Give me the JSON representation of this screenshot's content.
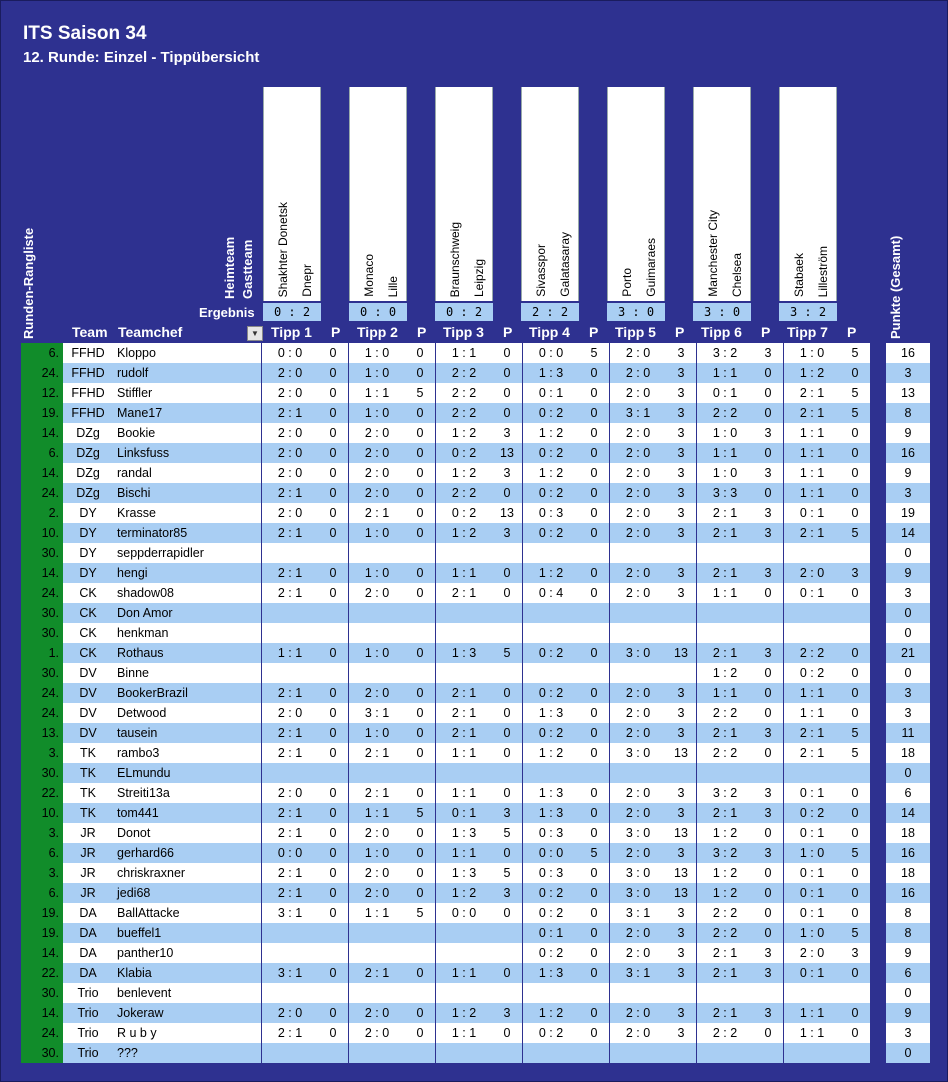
{
  "title": "ITS Saison 34",
  "subtitle": "12. Runde: Einzel - Tippübersicht",
  "labels": {
    "heimteam": "Heimteam",
    "gastteam": "Gastteam",
    "ergebnis": "Ergebnis",
    "runden_rangliste": "Runden-Rangliste",
    "team": "Team",
    "teamchef": "Teamchef",
    "punkte_gesamt": "Punkte (Gesamt)",
    "p": "P"
  },
  "matches": [
    {
      "home": "Shakhter Donetsk",
      "away": "Dnepr",
      "result": "0 : 2",
      "tipp_label": "Tipp 1"
    },
    {
      "home": "Monaco",
      "away": "Lille",
      "result": "0 : 0",
      "tipp_label": "Tipp 2"
    },
    {
      "home": "Braunschweig",
      "away": "Leipzig",
      "result": "0 : 2",
      "tipp_label": "Tipp 3"
    },
    {
      "home": "Sivasspor",
      "away": "Galatasaray",
      "result": "2 : 2",
      "tipp_label": "Tipp 4"
    },
    {
      "home": "Porto",
      "away": "Guimaraes",
      "result": "3 : 0",
      "tipp_label": "Tipp 5"
    },
    {
      "home": "Manchester City",
      "away": "Chelsea",
      "result": "3 : 0",
      "tipp_label": "Tipp 6"
    },
    {
      "home": "Stabaek",
      "away": "Lilleström",
      "result": "3 : 2",
      "tipp_label": "Tipp 7"
    }
  ],
  "rows": [
    {
      "rank": "6.",
      "team": "FFHD",
      "chef": "Kloppo",
      "tips": [
        [
          "0 : 0",
          "0"
        ],
        [
          "1 : 0",
          "0"
        ],
        [
          "1 : 1",
          "0"
        ],
        [
          "0 : 0",
          "5"
        ],
        [
          "2 : 0",
          "3"
        ],
        [
          "3 : 2",
          "3"
        ],
        [
          "1 : 0",
          "5"
        ]
      ],
      "total": "16"
    },
    {
      "rank": "24.",
      "team": "FFHD",
      "chef": "rudolf",
      "tips": [
        [
          "2 : 0",
          "0"
        ],
        [
          "1 : 0",
          "0"
        ],
        [
          "2 : 2",
          "0"
        ],
        [
          "1 : 3",
          "0"
        ],
        [
          "2 : 0",
          "3"
        ],
        [
          "1 : 1",
          "0"
        ],
        [
          "1 : 2",
          "0"
        ]
      ],
      "total": "3"
    },
    {
      "rank": "12.",
      "team": "FFHD",
      "chef": "Stiffler",
      "tips": [
        [
          "2 : 0",
          "0"
        ],
        [
          "1 : 1",
          "5"
        ],
        [
          "2 : 2",
          "0"
        ],
        [
          "0 : 1",
          "0"
        ],
        [
          "2 : 0",
          "3"
        ],
        [
          "0 : 1",
          "0"
        ],
        [
          "2 : 1",
          "5"
        ]
      ],
      "total": "13"
    },
    {
      "rank": "19.",
      "team": "FFHD",
      "chef": "Mane17",
      "tips": [
        [
          "2 : 1",
          "0"
        ],
        [
          "1 : 0",
          "0"
        ],
        [
          "2 : 2",
          "0"
        ],
        [
          "0 : 2",
          "0"
        ],
        [
          "3 : 1",
          "3"
        ],
        [
          "2 : 2",
          "0"
        ],
        [
          "2 : 1",
          "5"
        ]
      ],
      "total": "8"
    },
    {
      "rank": "14.",
      "team": "DZg",
      "chef": "Bookie",
      "tips": [
        [
          "2 : 0",
          "0"
        ],
        [
          "2 : 0",
          "0"
        ],
        [
          "1 : 2",
          "3"
        ],
        [
          "1 : 2",
          "0"
        ],
        [
          "2 : 0",
          "3"
        ],
        [
          "1 : 0",
          "3"
        ],
        [
          "1 : 1",
          "0"
        ]
      ],
      "total": "9"
    },
    {
      "rank": "6.",
      "team": "DZg",
      "chef": "Linksfuss",
      "tips": [
        [
          "2 : 0",
          "0"
        ],
        [
          "2 : 0",
          "0"
        ],
        [
          "0 : 2",
          "13"
        ],
        [
          "0 : 2",
          "0"
        ],
        [
          "2 : 0",
          "3"
        ],
        [
          "1 : 1",
          "0"
        ],
        [
          "1 : 1",
          "0"
        ]
      ],
      "total": "16"
    },
    {
      "rank": "14.",
      "team": "DZg",
      "chef": "randal",
      "tips": [
        [
          "2 : 0",
          "0"
        ],
        [
          "2 : 0",
          "0"
        ],
        [
          "1 : 2",
          "3"
        ],
        [
          "1 : 2",
          "0"
        ],
        [
          "2 : 0",
          "3"
        ],
        [
          "1 : 0",
          "3"
        ],
        [
          "1 : 1",
          "0"
        ]
      ],
      "total": "9"
    },
    {
      "rank": "24.",
      "team": "DZg",
      "chef": "Bischi",
      "tips": [
        [
          "2 : 1",
          "0"
        ],
        [
          "2 : 0",
          "0"
        ],
        [
          "2 : 2",
          "0"
        ],
        [
          "0 : 2",
          "0"
        ],
        [
          "2 : 0",
          "3"
        ],
        [
          "3 : 3",
          "0"
        ],
        [
          "1 : 1",
          "0"
        ]
      ],
      "total": "3"
    },
    {
      "rank": "2.",
      "team": "DY",
      "chef": "Krasse",
      "tips": [
        [
          "2 : 0",
          "0"
        ],
        [
          "2 : 1",
          "0"
        ],
        [
          "0 : 2",
          "13"
        ],
        [
          "0 : 3",
          "0"
        ],
        [
          "2 : 0",
          "3"
        ],
        [
          "2 : 1",
          "3"
        ],
        [
          "0 : 1",
          "0"
        ]
      ],
      "total": "19"
    },
    {
      "rank": "10.",
      "team": "DY",
      "chef": "terminator85",
      "tips": [
        [
          "2 : 1",
          "0"
        ],
        [
          "1 : 0",
          "0"
        ],
        [
          "1 : 2",
          "3"
        ],
        [
          "0 : 2",
          "0"
        ],
        [
          "2 : 0",
          "3"
        ],
        [
          "2 : 1",
          "3"
        ],
        [
          "2 : 1",
          "5"
        ]
      ],
      "total": "14"
    },
    {
      "rank": "30.",
      "team": "DY",
      "chef": "seppderrapidler",
      "tips": [
        [
          "",
          ""
        ],
        [
          "",
          ""
        ],
        [
          "",
          ""
        ],
        [
          "",
          ""
        ],
        [
          "",
          ""
        ],
        [
          "",
          ""
        ],
        [
          "",
          ""
        ]
      ],
      "total": "0"
    },
    {
      "rank": "14.",
      "team": "DY",
      "chef": "hengi",
      "tips": [
        [
          "2 : 1",
          "0"
        ],
        [
          "1 : 0",
          "0"
        ],
        [
          "1 : 1",
          "0"
        ],
        [
          "1 : 2",
          "0"
        ],
        [
          "2 : 0",
          "3"
        ],
        [
          "2 : 1",
          "3"
        ],
        [
          "2 : 0",
          "3"
        ]
      ],
      "total": "9"
    },
    {
      "rank": "24.",
      "team": "CK",
      "chef": "shadow08",
      "tips": [
        [
          "2 : 1",
          "0"
        ],
        [
          "2 : 0",
          "0"
        ],
        [
          "2 : 1",
          "0"
        ],
        [
          "0 : 4",
          "0"
        ],
        [
          "2 : 0",
          "3"
        ],
        [
          "1 : 1",
          "0"
        ],
        [
          "0 : 1",
          "0"
        ]
      ],
      "total": "3"
    },
    {
      "rank": "30.",
      "team": "CK",
      "chef": "Don Amor",
      "tips": [
        [
          "",
          ""
        ],
        [
          "",
          ""
        ],
        [
          "",
          ""
        ],
        [
          "",
          ""
        ],
        [
          "",
          ""
        ],
        [
          "",
          ""
        ],
        [
          "",
          ""
        ]
      ],
      "total": "0"
    },
    {
      "rank": "30.",
      "team": "CK",
      "chef": "henkman",
      "tips": [
        [
          "",
          ""
        ],
        [
          "",
          ""
        ],
        [
          "",
          ""
        ],
        [
          "",
          ""
        ],
        [
          "",
          ""
        ],
        [
          "",
          ""
        ],
        [
          "",
          ""
        ]
      ],
      "total": "0"
    },
    {
      "rank": "1.",
      "team": "CK",
      "chef": "Rothaus",
      "tips": [
        [
          "1 : 1",
          "0"
        ],
        [
          "1 : 0",
          "0"
        ],
        [
          "1 : 3",
          "5"
        ],
        [
          "0 : 2",
          "0"
        ],
        [
          "3 : 0",
          "13"
        ],
        [
          "2 : 1",
          "3"
        ],
        [
          "2 : 2",
          "0"
        ]
      ],
      "total": "21"
    },
    {
      "rank": "30.",
      "team": "DV",
      "chef": "Binne",
      "tips": [
        [
          "",
          ""
        ],
        [
          "",
          ""
        ],
        [
          "",
          ""
        ],
        [
          "",
          ""
        ],
        [
          "",
          ""
        ],
        [
          "1 : 2",
          "0"
        ],
        [
          "0 : 2",
          "0"
        ]
      ],
      "total": "0"
    },
    {
      "rank": "24.",
      "team": "DV",
      "chef": "BookerBrazil",
      "tips": [
        [
          "2 : 1",
          "0"
        ],
        [
          "2 : 0",
          "0"
        ],
        [
          "2 : 1",
          "0"
        ],
        [
          "0 : 2",
          "0"
        ],
        [
          "2 : 0",
          "3"
        ],
        [
          "1 : 1",
          "0"
        ],
        [
          "1 : 1",
          "0"
        ]
      ],
      "total": "3"
    },
    {
      "rank": "24.",
      "team": "DV",
      "chef": "Detwood",
      "tips": [
        [
          "2 : 0",
          "0"
        ],
        [
          "3 : 1",
          "0"
        ],
        [
          "2 : 1",
          "0"
        ],
        [
          "1 : 3",
          "0"
        ],
        [
          "2 : 0",
          "3"
        ],
        [
          "2 : 2",
          "0"
        ],
        [
          "1 : 1",
          "0"
        ]
      ],
      "total": "3"
    },
    {
      "rank": "13.",
      "team": "DV",
      "chef": "tausein",
      "tips": [
        [
          "2 : 1",
          "0"
        ],
        [
          "1 : 0",
          "0"
        ],
        [
          "2 : 1",
          "0"
        ],
        [
          "0 : 2",
          "0"
        ],
        [
          "2 : 0",
          "3"
        ],
        [
          "2 : 1",
          "3"
        ],
        [
          "2 : 1",
          "5"
        ]
      ],
      "total": "11"
    },
    {
      "rank": "3.",
      "team": "TK",
      "chef": "rambo3",
      "tips": [
        [
          "2 : 1",
          "0"
        ],
        [
          "2 : 1",
          "0"
        ],
        [
          "1 : 1",
          "0"
        ],
        [
          "1 : 2",
          "0"
        ],
        [
          "3 : 0",
          "13"
        ],
        [
          "2 : 2",
          "0"
        ],
        [
          "2 : 1",
          "5"
        ]
      ],
      "total": "18"
    },
    {
      "rank": "30.",
      "team": "TK",
      "chef": "ELmundu",
      "tips": [
        [
          "",
          ""
        ],
        [
          "",
          ""
        ],
        [
          "",
          ""
        ],
        [
          "",
          ""
        ],
        [
          "",
          ""
        ],
        [
          "",
          ""
        ],
        [
          "",
          ""
        ]
      ],
      "total": "0"
    },
    {
      "rank": "22.",
      "team": "TK",
      "chef": "Streiti13a",
      "tips": [
        [
          "2 : 0",
          "0"
        ],
        [
          "2 : 1",
          "0"
        ],
        [
          "1 : 1",
          "0"
        ],
        [
          "1 : 3",
          "0"
        ],
        [
          "2 : 0",
          "3"
        ],
        [
          "3 : 2",
          "3"
        ],
        [
          "0 : 1",
          "0"
        ]
      ],
      "total": "6"
    },
    {
      "rank": "10.",
      "team": "TK",
      "chef": "tom441",
      "tips": [
        [
          "2 : 1",
          "0"
        ],
        [
          "1 : 1",
          "5"
        ],
        [
          "0 : 1",
          "3"
        ],
        [
          "1 : 3",
          "0"
        ],
        [
          "2 : 0",
          "3"
        ],
        [
          "2 : 1",
          "3"
        ],
        [
          "0 : 2",
          "0"
        ]
      ],
      "total": "14"
    },
    {
      "rank": "3.",
      "team": "JR",
      "chef": "Donot",
      "tips": [
        [
          "2 : 1",
          "0"
        ],
        [
          "2 : 0",
          "0"
        ],
        [
          "1 : 3",
          "5"
        ],
        [
          "0 : 3",
          "0"
        ],
        [
          "3 : 0",
          "13"
        ],
        [
          "1 : 2",
          "0"
        ],
        [
          "0 : 1",
          "0"
        ]
      ],
      "total": "18"
    },
    {
      "rank": "6.",
      "team": "JR",
      "chef": "gerhard66",
      "tips": [
        [
          "0 : 0",
          "0"
        ],
        [
          "1 : 0",
          "0"
        ],
        [
          "1 : 1",
          "0"
        ],
        [
          "0 : 0",
          "5"
        ],
        [
          "2 : 0",
          "3"
        ],
        [
          "3 : 2",
          "3"
        ],
        [
          "1 : 0",
          "5"
        ]
      ],
      "total": "16"
    },
    {
      "rank": "3.",
      "team": "JR",
      "chef": "chriskraxner",
      "tips": [
        [
          "2 : 1",
          "0"
        ],
        [
          "2 : 0",
          "0"
        ],
        [
          "1 : 3",
          "5"
        ],
        [
          "0 : 3",
          "0"
        ],
        [
          "3 : 0",
          "13"
        ],
        [
          "1 : 2",
          "0"
        ],
        [
          "0 : 1",
          "0"
        ]
      ],
      "total": "18"
    },
    {
      "rank": "6.",
      "team": "JR",
      "chef": "jedi68",
      "tips": [
        [
          "2 : 1",
          "0"
        ],
        [
          "2 : 0",
          "0"
        ],
        [
          "1 : 2",
          "3"
        ],
        [
          "0 : 2",
          "0"
        ],
        [
          "3 : 0",
          "13"
        ],
        [
          "1 : 2",
          "0"
        ],
        [
          "0 : 1",
          "0"
        ]
      ],
      "total": "16"
    },
    {
      "rank": "19.",
      "team": "DA",
      "chef": "BallAttacke",
      "tips": [
        [
          "3 : 1",
          "0"
        ],
        [
          "1 : 1",
          "5"
        ],
        [
          "0 : 0",
          "0"
        ],
        [
          "0 : 2",
          "0"
        ],
        [
          "3 : 1",
          "3"
        ],
        [
          "2 : 2",
          "0"
        ],
        [
          "0 : 1",
          "0"
        ]
      ],
      "total": "8"
    },
    {
      "rank": "19.",
      "team": "DA",
      "chef": "bueffel1",
      "tips": [
        [
          "",
          ""
        ],
        [
          "",
          ""
        ],
        [
          "",
          ""
        ],
        [
          "0 : 1",
          "0"
        ],
        [
          "2 : 0",
          "3"
        ],
        [
          "2 : 2",
          "0"
        ],
        [
          "1 : 0",
          "5"
        ]
      ],
      "total": "8"
    },
    {
      "rank": "14.",
      "team": "DA",
      "chef": "panther10",
      "tips": [
        [
          "",
          ""
        ],
        [
          "",
          ""
        ],
        [
          "",
          ""
        ],
        [
          "0 : 2",
          "0"
        ],
        [
          "2 : 0",
          "3"
        ],
        [
          "2 : 1",
          "3"
        ],
        [
          "2 : 0",
          "3"
        ]
      ],
      "total": "9"
    },
    {
      "rank": "22.",
      "team": "DA",
      "chef": "Klabia",
      "tips": [
        [
          "3 : 1",
          "0"
        ],
        [
          "2 : 1",
          "0"
        ],
        [
          "1 : 1",
          "0"
        ],
        [
          "1 : 3",
          "0"
        ],
        [
          "3 : 1",
          "3"
        ],
        [
          "2 : 1",
          "3"
        ],
        [
          "0 : 1",
          "0"
        ]
      ],
      "total": "6"
    },
    {
      "rank": "30.",
      "team": "Trio",
      "chef": "benlevent",
      "tips": [
        [
          "",
          ""
        ],
        [
          "",
          ""
        ],
        [
          "",
          ""
        ],
        [
          "",
          ""
        ],
        [
          "",
          ""
        ],
        [
          "",
          ""
        ],
        [
          "",
          ""
        ]
      ],
      "total": "0"
    },
    {
      "rank": "14.",
      "team": "Trio",
      "chef": "Jokeraw",
      "tips": [
        [
          "2 : 0",
          "0"
        ],
        [
          "2 : 0",
          "0"
        ],
        [
          "1 : 2",
          "3"
        ],
        [
          "1 : 2",
          "0"
        ],
        [
          "2 : 0",
          "3"
        ],
        [
          "2 : 1",
          "3"
        ],
        [
          "1 : 1",
          "0"
        ]
      ],
      "total": "9"
    },
    {
      "rank": "24.",
      "team": "Trio",
      "chef": "R u b y",
      "tips": [
        [
          "2 : 1",
          "0"
        ],
        [
          "2 : 0",
          "0"
        ],
        [
          "1 : 1",
          "0"
        ],
        [
          "0 : 2",
          "0"
        ],
        [
          "2 : 0",
          "3"
        ],
        [
          "2 : 2",
          "0"
        ],
        [
          "1 : 1",
          "0"
        ]
      ],
      "total": "3"
    },
    {
      "rank": "30.",
      "team": "Trio",
      "chef": "???",
      "tips": [
        [
          "",
          ""
        ],
        [
          "",
          ""
        ],
        [
          "",
          ""
        ],
        [
          "",
          ""
        ],
        [
          "",
          ""
        ],
        [
          "",
          ""
        ],
        [
          "",
          ""
        ]
      ],
      "total": "0"
    }
  ]
}
